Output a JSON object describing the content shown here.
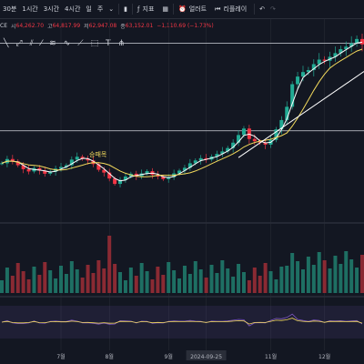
{
  "toolbar": {
    "items": [
      "30분",
      "1시간",
      "3시간",
      "4시간",
      "일",
      "주"
    ],
    "indicator_label": "지표",
    "alert_label": "얼러트",
    "replay_label": "리플레이"
  },
  "ohlc": {
    "symbol": "CE",
    "open_key": "시",
    "open": "64,262.70",
    "high_key": "고",
    "high": "64,817.99",
    "low_key": "저",
    "low": "62,947.08",
    "close_key": "종",
    "close": "63,152.01",
    "change": "−1,110.69 (−1.73%)"
  },
  "drawing_tools": [
    "╲",
    "⤢",
    "⫽",
    "⁄",
    "≋",
    "∿",
    "⟋",
    "⬚",
    "T",
    "⋔"
  ],
  "annotation_text": "승패목",
  "colors": {
    "up": "#22ab94",
    "down": "#f23645",
    "bg": "#131722",
    "ma_fast": "#ffffff",
    "ma_slow": "#f2d95c",
    "rsi": "#7e57c2",
    "grid": "#2a2e39"
  },
  "chart_data": {
    "type": "candlestick",
    "x_ticks": [
      "7월",
      "8월",
      "9월",
      "2024-09-25",
      "11월",
      "12월"
    ],
    "x_tick_index": [
      11,
      20,
      31,
      38,
      50,
      60
    ],
    "close": [
      60500,
      62000,
      61200,
      59800,
      58400,
      57600,
      58800,
      57900,
      56800,
      57500,
      58600,
      59200,
      59800,
      61800,
      62800,
      62100,
      61500,
      60200,
      58200,
      57200,
      55100,
      53200,
      54600,
      55800,
      56800,
      55900,
      56900,
      57700,
      56400,
      55800,
      54900,
      55600,
      56900,
      57900,
      58900,
      60500,
      61500,
      62300,
      61800,
      62900,
      63800,
      64700,
      65900,
      67800,
      70500,
      72800,
      69100,
      68300,
      67800,
      67100,
      68800,
      72500,
      75800,
      80500,
      88500,
      91200,
      92800,
      93500,
      95600,
      97200,
      96800,
      98200,
      99500,
      100900,
      101800,
      103000,
      104500,
      102600
    ],
    "ylim": [
      50000,
      108000
    ],
    "horizontal_levels": [
      72000,
      103000
    ]
  }
}
